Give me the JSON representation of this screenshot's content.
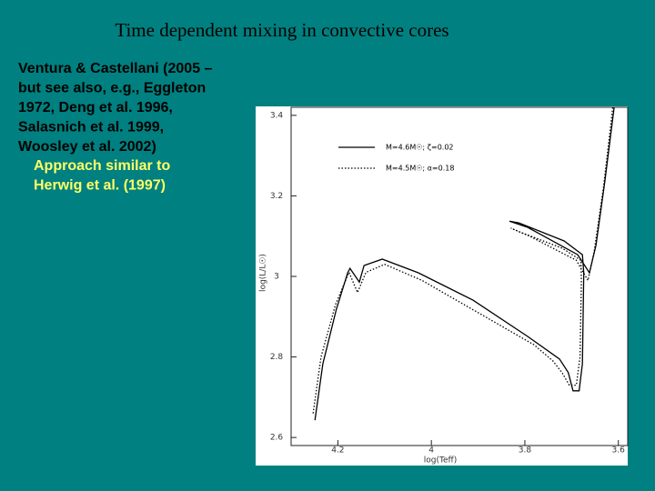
{
  "slide": {
    "title": "Time dependent mixing in convective cores",
    "body": [
      "Ventura & Castellani (2005 –",
      "but see also, e.g., Eggleton",
      "1972, Deng et al. 1996,",
      "Salasnich et al. 1999,",
      "Woosley et al. 2002)"
    ],
    "sub_body": [
      "Approach similar to",
      "Herwig et al. (1997)"
    ]
  },
  "chart_data": {
    "type": "line",
    "xlabel": "log(Teff)",
    "ylabel": "log(L/L☉)",
    "xlim": [
      4.3,
      3.58
    ],
    "ylim": [
      2.58,
      3.42
    ],
    "xticks": [
      4.2,
      4,
      3.8,
      3.6
    ],
    "yticks": [
      3.4,
      3.2,
      3,
      2.8,
      2.6
    ],
    "series": [
      {
        "name": "M=4.6M☉; ζ=0.02",
        "color": "#000000",
        "style": "solid",
        "x": [
          4.249,
          4.232,
          4.203,
          4.179,
          4.174,
          4.154,
          4.144,
          4.105,
          4.028,
          3.911,
          3.794,
          3.726,
          3.707,
          3.697,
          3.684,
          3.677,
          3.674,
          3.677,
          3.716,
          3.813,
          3.833,
          3.794,
          3.687,
          3.662,
          3.648,
          3.629,
          3.609
        ],
        "values": [
          2.643,
          2.783,
          2.919,
          3.009,
          3.02,
          2.986,
          3.027,
          3.043,
          3.009,
          2.941,
          2.851,
          2.795,
          2.761,
          2.716,
          2.716,
          2.783,
          3.009,
          3.054,
          3.088,
          3.133,
          3.137,
          3.122,
          3.054,
          3.009,
          3.077,
          3.235,
          3.42
        ]
      },
      {
        "name": "M=4.5M☉; α=0.18",
        "color": "#000000",
        "style": "dotted",
        "x": [
          4.253,
          4.236,
          4.205,
          4.18,
          4.176,
          4.158,
          4.14,
          4.1,
          4.02,
          3.9,
          3.78,
          3.74,
          3.72,
          3.705,
          3.69,
          3.682,
          3.679,
          3.68,
          3.72,
          3.81,
          3.83,
          3.79,
          3.69,
          3.665,
          3.652,
          3.632,
          3.612
        ],
        "values": [
          2.66,
          2.8,
          2.93,
          3.0,
          3.01,
          2.96,
          3.01,
          3.03,
          2.99,
          2.91,
          2.83,
          2.79,
          2.76,
          2.73,
          2.73,
          2.8,
          2.99,
          3.04,
          3.07,
          3.11,
          3.12,
          3.1,
          3.04,
          2.99,
          3.06,
          3.22,
          3.42
        ]
      }
    ]
  }
}
